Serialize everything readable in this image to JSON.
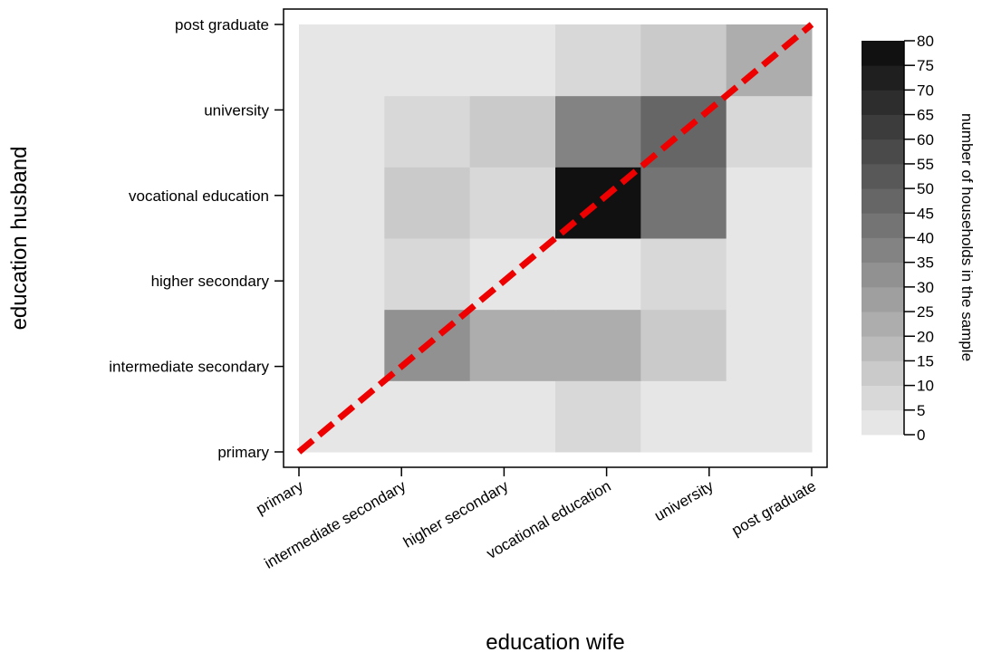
{
  "chart_data": {
    "type": "heatmap",
    "title": "",
    "xlabel": "education wife",
    "ylabel": "education husband",
    "x_categories": [
      "primary",
      "intermediate secondary",
      "higher secondary",
      "vocational education",
      "university",
      "post graduate"
    ],
    "y_categories": [
      "primary",
      "intermediate secondary",
      "higher secondary",
      "vocational education",
      "university",
      "post graduate"
    ],
    "values_note_rows_by_y": "rows ordered as y_categories (bottom to top), columns as x_categories",
    "values": [
      [
        2,
        2,
        2,
        8,
        3,
        1
      ],
      [
        2,
        32,
        20,
        20,
        14,
        2
      ],
      [
        2,
        9,
        2,
        2,
        8,
        2
      ],
      [
        2,
        13,
        7,
        80,
        44,
        2
      ],
      [
        2,
        9,
        14,
        39,
        46,
        9
      ],
      [
        1,
        3,
        3,
        8,
        14,
        20
      ]
    ],
    "colorbar": {
      "label": "number of households in the sample",
      "min": 0,
      "max": 80,
      "ticks": [
        "0",
        "5",
        "10",
        "15",
        "20",
        "25",
        "30",
        "35",
        "40",
        "45",
        "50",
        "55",
        "60",
        "65",
        "70",
        "75",
        "80"
      ],
      "low_color": "#e6e6e6",
      "high_color": "#111111"
    },
    "diagonal_line": {
      "from": [
        "primary",
        "primary"
      ],
      "to": [
        "post graduate",
        "post graduate"
      ],
      "color": "#ee0000",
      "style": "dashed"
    },
    "grid": false
  }
}
